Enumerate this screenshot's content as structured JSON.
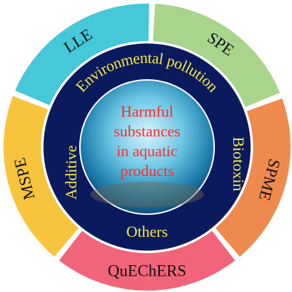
{
  "outer_ring": {
    "segments": [
      {
        "label": "LLE",
        "color": "#45c8d8"
      },
      {
        "label": "SPE",
        "color": "#a8d48c"
      },
      {
        "label": "SPME",
        "color": "#ef8a4e"
      },
      {
        "label": "QuEChERS",
        "color": "#f2647a"
      },
      {
        "label": "MSPE",
        "color": "#f7c43e"
      }
    ]
  },
  "inner_ring": {
    "top": "Environmental pollution",
    "right": "Biotoxin",
    "bottom": "Others",
    "left": "Additive"
  },
  "center": {
    "lines": [
      "Harmful",
      "substances",
      "in aquatic",
      "products"
    ]
  }
}
